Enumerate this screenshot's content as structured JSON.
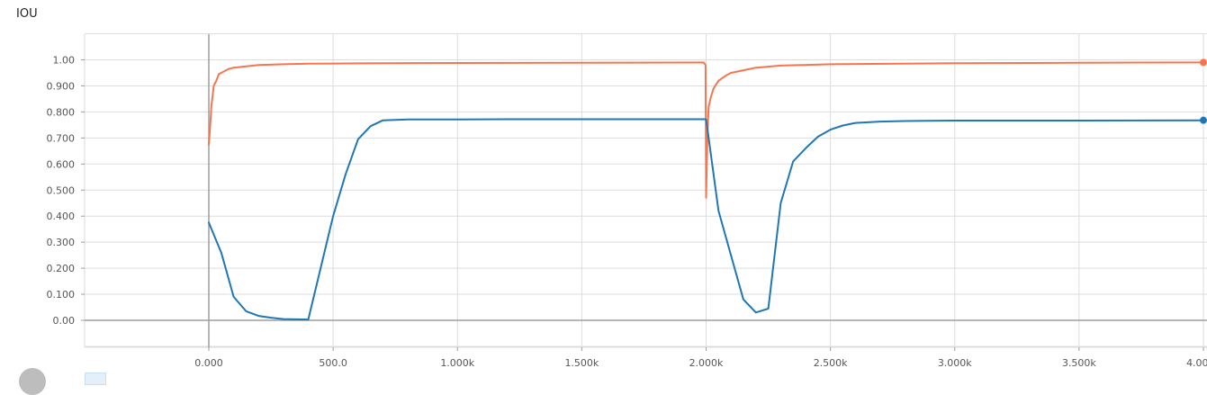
{
  "chart_title": "IOU",
  "colors": {
    "series_orange": "#f5764e",
    "series_blue": "#1f77b4",
    "grid": "#dddddd",
    "zero_axis": "#9e9e9e"
  },
  "chart_data": {
    "type": "line",
    "title": "IOU",
    "xlabel": "",
    "ylabel": "",
    "xlim": [
      -500,
      4000
    ],
    "ylim": [
      -0.1,
      1.1
    ],
    "grid": true,
    "x_ticks": [
      0,
      500,
      1000,
      1500,
      2000,
      2500,
      3000,
      3500,
      4000
    ],
    "x_tick_labels": [
      "0.000",
      "500.0",
      "1.000k",
      "1.500k",
      "2.000k",
      "2.500k",
      "3.000k",
      "3.500k",
      "4.000k"
    ],
    "y_ticks": [
      0,
      0.1,
      0.2,
      0.3,
      0.4,
      0.5,
      0.6,
      0.7,
      0.8,
      0.9,
      1.0
    ],
    "y_tick_labels": [
      "0.00",
      "0.100",
      "0.200",
      "0.300",
      "0.400",
      "0.500",
      "0.600",
      "0.700",
      "0.800",
      "0.900",
      "1.00"
    ],
    "series": [
      {
        "color": "#f5764e",
        "x": [
          0,
          5,
          10,
          20,
          30,
          40,
          50,
          60,
          80,
          100,
          150,
          200,
          300,
          400,
          500,
          700,
          1000,
          1500,
          1990,
          1998,
          2000,
          2005,
          2010,
          2020,
          2030,
          2050,
          2080,
          2100,
          2150,
          2200,
          2300,
          2500,
          3000,
          3500,
          4000
        ],
        "y": [
          0.675,
          0.74,
          0.82,
          0.9,
          0.92,
          0.945,
          0.95,
          0.955,
          0.965,
          0.97,
          0.975,
          0.98,
          0.983,
          0.985,
          0.986,
          0.987,
          0.988,
          0.989,
          0.99,
          0.98,
          0.47,
          0.7,
          0.82,
          0.86,
          0.89,
          0.92,
          0.94,
          0.95,
          0.96,
          0.97,
          0.978,
          0.983,
          0.987,
          0.989,
          0.99
        ]
      },
      {
        "color": "#1f77b4",
        "x": [
          0,
          50,
          100,
          150,
          200,
          250,
          300,
          400,
          500,
          550,
          600,
          650,
          700,
          800,
          1000,
          1200,
          1500,
          1800,
          2000,
          2050,
          2100,
          2150,
          2200,
          2250,
          2300,
          2350,
          2400,
          2450,
          2500,
          2550,
          2600,
          2700,
          2800,
          3000,
          3500,
          4000
        ],
        "y": [
          0.375,
          0.26,
          0.09,
          0.035,
          0.017,
          0.01,
          0.005,
          0.003,
          0.4,
          0.56,
          0.695,
          0.745,
          0.768,
          0.771,
          0.771,
          0.772,
          0.772,
          0.772,
          0.772,
          0.42,
          0.25,
          0.08,
          0.03,
          0.045,
          0.45,
          0.61,
          0.66,
          0.705,
          0.732,
          0.748,
          0.758,
          0.763,
          0.765,
          0.767,
          0.767,
          0.768
        ]
      }
    ]
  }
}
